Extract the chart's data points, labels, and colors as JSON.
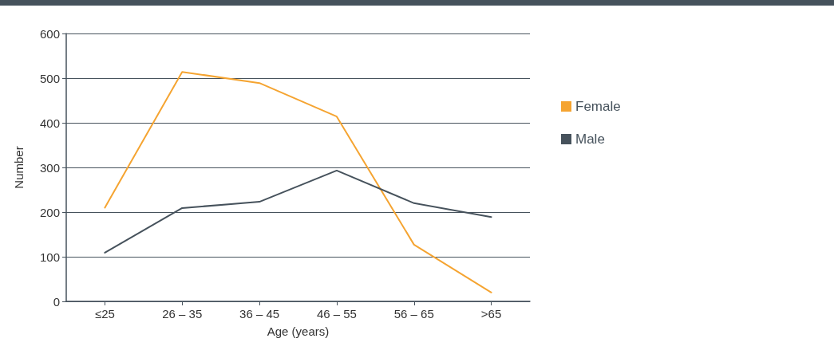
{
  "chart_data": {
    "type": "line",
    "xlabel": "Age (years)",
    "ylabel": "Number",
    "categories": [
      "≤25",
      "26 – 35",
      "36 – 45",
      "46 – 55",
      "56 – 65",
      ">65"
    ],
    "series": [
      {
        "name": "Female",
        "color": "#f5a431",
        "values": [
          210,
          514,
          489,
          414,
          127,
          20
        ]
      },
      {
        "name": "Male",
        "color": "#46525c",
        "values": [
          109,
          209,
          223,
          293,
          220,
          189
        ]
      }
    ],
    "ylim": [
      0,
      600
    ],
    "yticks": [
      0,
      100,
      200,
      300,
      400,
      500,
      600
    ],
    "grid": "y",
    "legend": "right",
    "marker": "none",
    "line_style": "solid"
  }
}
